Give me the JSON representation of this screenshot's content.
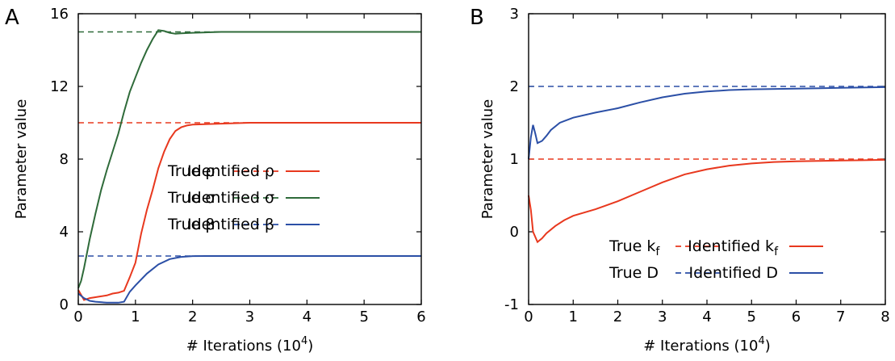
{
  "colors": {
    "red": "#e8381e",
    "green": "#2f6b3a",
    "blue": "#2b4fa6",
    "axis": "#000000"
  },
  "chart_data": [
    {
      "type": "line",
      "panel": "A",
      "xlabel_main": "# Iterations (10",
      "xlabel_exp": "4",
      "xlabel_close": ")",
      "ylabel": "Parameter value",
      "xlim": [
        0,
        6
      ],
      "ylim": [
        0,
        16
      ],
      "xticks": [
        "0",
        "1",
        "2",
        "3",
        "4",
        "5",
        "6"
      ],
      "yticks": [
        "0",
        "4",
        "8",
        "12",
        "16"
      ],
      "legend_position": "center-right",
      "true_values": [
        {
          "label": "True ρ",
          "value": 10,
          "color": "#e8381e"
        },
        {
          "label": "True σ",
          "value": 15,
          "color": "#2f6b3a"
        },
        {
          "label": "True β",
          "value": 2.667,
          "color": "#2b4fa6"
        }
      ],
      "series": [
        {
          "name": "Identified ρ",
          "color": "#e8381e",
          "x": [
            0,
            0.1,
            0.2,
            0.3,
            0.4,
            0.5,
            0.6,
            0.7,
            0.8,
            0.9,
            1.0,
            1.1,
            1.2,
            1.3,
            1.4,
            1.5,
            1.6,
            1.7,
            1.8,
            1.9,
            2.0,
            2.5,
            3.0,
            4.0,
            5.0,
            6.0
          ],
          "y": [
            0.8,
            0.25,
            0.35,
            0.4,
            0.45,
            0.5,
            0.6,
            0.65,
            0.75,
            1.5,
            2.3,
            3.9,
            5.2,
            6.3,
            7.5,
            8.4,
            9.1,
            9.55,
            9.75,
            9.85,
            9.9,
            9.95,
            10.0,
            10.0,
            10.0,
            10.0
          ]
        },
        {
          "name": "Identified σ",
          "color": "#2f6b3a",
          "x": [
            0,
            0.05,
            0.1,
            0.2,
            0.3,
            0.4,
            0.5,
            0.6,
            0.7,
            0.8,
            0.9,
            1.0,
            1.1,
            1.2,
            1.3,
            1.4,
            1.5,
            1.6,
            1.7,
            1.8,
            2.0,
            2.5,
            3.0,
            4.0,
            5.0,
            6.0
          ],
          "y": [
            0.9,
            1.3,
            2.0,
            3.6,
            5.0,
            6.3,
            7.4,
            8.4,
            9.4,
            10.6,
            11.7,
            12.5,
            13.3,
            14.0,
            14.6,
            15.1,
            15.05,
            14.95,
            14.9,
            14.92,
            14.95,
            15.0,
            15.0,
            15.0,
            15.0,
            15.0
          ]
        },
        {
          "name": "Identified β",
          "color": "#2b4fa6",
          "x": [
            0,
            0.1,
            0.2,
            0.3,
            0.5,
            0.7,
            0.8,
            0.9,
            1.0,
            1.2,
            1.4,
            1.6,
            1.8,
            2.0,
            2.5,
            3.0,
            4.0,
            5.0,
            6.0
          ],
          "y": [
            0.6,
            0.35,
            0.2,
            0.15,
            0.1,
            0.1,
            0.15,
            0.7,
            1.05,
            1.7,
            2.2,
            2.5,
            2.62,
            2.66,
            2.667,
            2.667,
            2.667,
            2.667,
            2.667
          ]
        }
      ]
    },
    {
      "type": "line",
      "panel": "B",
      "xlabel_main": "# Iterations (10",
      "xlabel_exp": "4",
      "xlabel_close": ")",
      "ylabel": "Parameter value",
      "xlim": [
        0,
        8
      ],
      "ylim": [
        -1,
        3
      ],
      "xticks": [
        "0",
        "1",
        "2",
        "3",
        "4",
        "5",
        "6",
        "7",
        "8"
      ],
      "yticks": [
        "-1",
        "0",
        "1",
        "2",
        "3"
      ],
      "legend_position": "bottom-right",
      "true_values": [
        {
          "label": "True k",
          "sub": "f",
          "value": 1.0,
          "color": "#e8381e"
        },
        {
          "label": "True D",
          "sub": "",
          "value": 2.0,
          "color": "#2b4fa6"
        }
      ],
      "series": [
        {
          "name": "Identified k",
          "sub": "f",
          "color": "#e8381e",
          "x": [
            0,
            0.05,
            0.1,
            0.2,
            0.3,
            0.4,
            0.6,
            0.8,
            1.0,
            1.5,
            2.0,
            2.5,
            3.0,
            3.5,
            4.0,
            4.5,
            5.0,
            5.5,
            6.0,
            6.5,
            7.0,
            7.5,
            8.0
          ],
          "y": [
            0.5,
            0.3,
            0.0,
            -0.14,
            -0.09,
            -0.02,
            0.08,
            0.16,
            0.22,
            0.31,
            0.42,
            0.55,
            0.68,
            0.79,
            0.86,
            0.91,
            0.94,
            0.96,
            0.97,
            0.975,
            0.98,
            0.985,
            0.99
          ]
        },
        {
          "name": "Identified D",
          "sub": "",
          "color": "#2b4fa6",
          "x": [
            0,
            0.05,
            0.1,
            0.15,
            0.2,
            0.3,
            0.4,
            0.5,
            0.7,
            1.0,
            1.5,
            2.0,
            2.5,
            3.0,
            3.5,
            4.0,
            4.5,
            5.0,
            6.0,
            7.0,
            8.0
          ],
          "y": [
            1.0,
            1.3,
            1.47,
            1.35,
            1.22,
            1.25,
            1.32,
            1.4,
            1.5,
            1.57,
            1.64,
            1.7,
            1.78,
            1.85,
            1.9,
            1.93,
            1.95,
            1.96,
            1.97,
            1.98,
            1.99
          ]
        }
      ]
    }
  ]
}
